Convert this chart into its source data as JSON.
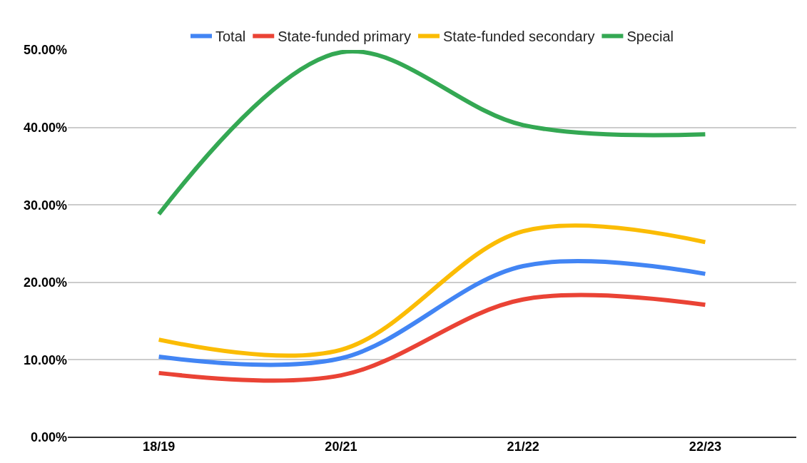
{
  "chart_data": {
    "type": "line",
    "categories": [
      "18/19",
      "20/21",
      "21/22",
      "22/23"
    ],
    "series": [
      {
        "name": "Total",
        "color": "#4285f4",
        "values": [
          10.4,
          10.2,
          22.1,
          21.1
        ]
      },
      {
        "name": "State-funded primary",
        "color": "#ea4335",
        "values": [
          8.3,
          8.0,
          17.8,
          17.1
        ]
      },
      {
        "name": "State-funded secondary",
        "color": "#fbbc04",
        "values": [
          12.6,
          11.3,
          26.6,
          25.2
        ]
      },
      {
        "name": "Special",
        "color": "#34a853",
        "values": [
          28.8,
          49.7,
          40.3,
          39.1
        ]
      }
    ],
    "ylim": [
      0,
      50
    ],
    "yticks": [
      {
        "value": 0,
        "label": "0.00%"
      },
      {
        "value": 10,
        "label": "10.00%"
      },
      {
        "value": 20,
        "label": "20.00%"
      },
      {
        "value": 30,
        "label": "30.00%"
      },
      {
        "value": 40,
        "label": "40.00%"
      },
      {
        "value": 50,
        "label": "50.00%"
      }
    ],
    "grid": "y",
    "legend": "top",
    "marker": "none",
    "line_style": "solid"
  }
}
